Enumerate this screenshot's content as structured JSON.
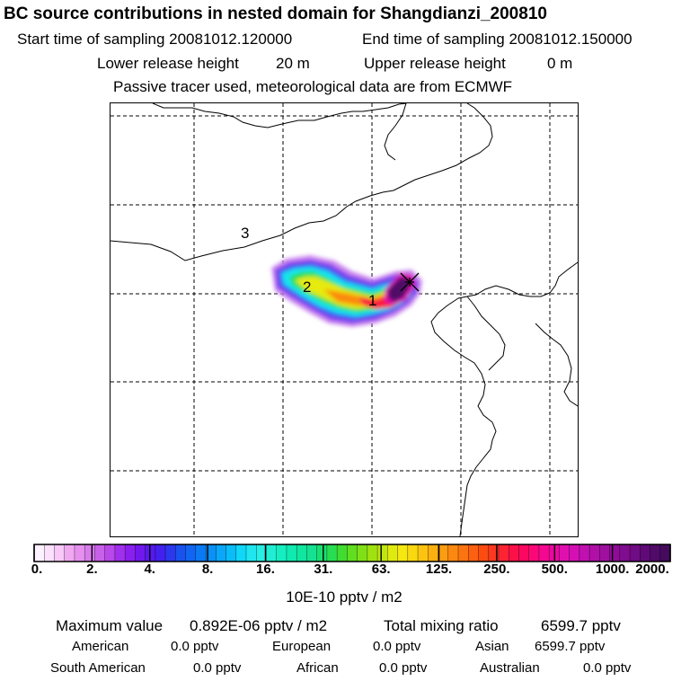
{
  "header": {
    "title": "BC  source contributions in nested domain for Shangdianzi_200810",
    "start_label": "Start time of sampling 20081012.120000",
    "end_label": "End time of sampling 20081012.150000",
    "lower_label": "Lower release height",
    "lower_value": "20 m",
    "upper_label": "Upper release height",
    "upper_value": "0 m",
    "tracer_note": "Passive tracer used, meteorological data are from ECMWF"
  },
  "map": {
    "markers": [
      {
        "id": "1",
        "label": "1"
      },
      {
        "id": "2",
        "label": "2"
      },
      {
        "id": "3",
        "label": "3"
      }
    ],
    "receptor_symbol": "x-cross"
  },
  "colorbar": {
    "tick_labels": [
      "0.",
      "2.",
      "4.",
      "8.",
      "16.",
      "31.",
      "63.",
      "125.",
      "250.",
      "500.",
      "1000.",
      "2000."
    ],
    "units": "10E-10 pptv / m2",
    "colors": [
      "#fff2ff",
      "#fce0fc",
      "#f8c8f8",
      "#f0a8f0",
      "#e690ee",
      "#d87cec",
      "#c860ea",
      "#b848ea",
      "#a030ec",
      "#8a20ee",
      "#7018ee",
      "#5818ee",
      "#4220ee",
      "#2c38ee",
      "#1a52f0",
      "#1066f2",
      "#0a7af4",
      "#0a90f6",
      "#0aa6f8",
      "#0abcf8",
      "#10d6f8",
      "#20e6f0",
      "#28eee4",
      "#20eed2",
      "#14eec0",
      "#10eab0",
      "#10e6a0",
      "#14e290",
      "#18e070",
      "#28de50",
      "#40dc30",
      "#60de20",
      "#80e018",
      "#a0e210",
      "#c0e610",
      "#e0ea10",
      "#f4e810",
      "#fad810",
      "#fcc410",
      "#fcb010",
      "#fc9c10",
      "#fc8810",
      "#fc7410",
      "#fc6010",
      "#fc4c10",
      "#fc3820",
      "#fc2434",
      "#fc1048",
      "#fc0860",
      "#fa0878",
      "#f40890",
      "#ea08a0",
      "#e010b0",
      "#d410b4",
      "#c010b0",
      "#b010a8",
      "#a010a0",
      "#900c98",
      "#800c90",
      "#700c84",
      "#600a78",
      "#500a68",
      "#440a5c"
    ]
  },
  "stats": {
    "max_label": "Maximum value",
    "max_value": "0.892E-06 pptv / m2",
    "total_label": "Total mixing ratio",
    "total_value": "6599.7 pptv",
    "regions": [
      {
        "name": "American",
        "value": "0.0 pptv"
      },
      {
        "name": "European",
        "value": "0.0 pptv"
      },
      {
        "name": "Asian",
        "value": "6599.7 pptv"
      },
      {
        "name": "South American",
        "value": "0.0 pptv"
      },
      {
        "name": "African",
        "value": "0.0 pptv"
      },
      {
        "name": "Australian",
        "value": "0.0 pptv"
      }
    ]
  }
}
